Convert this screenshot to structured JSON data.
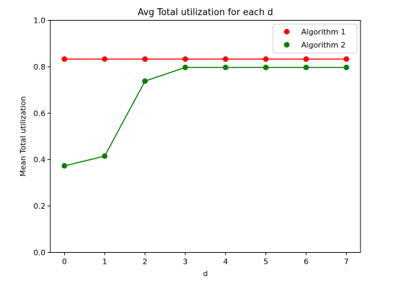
{
  "chart_data": {
    "type": "line",
    "title": "Avg Total utilization for each d",
    "xlabel": "d",
    "ylabel": "Mean Total utilization",
    "x": [
      0,
      1,
      2,
      3,
      4,
      5,
      6,
      7
    ],
    "xticks": [
      "0",
      "1",
      "2",
      "3",
      "4",
      "5",
      "6",
      "7"
    ],
    "yticks": [
      "0.0",
      "0.2",
      "0.4",
      "0.6",
      "0.8",
      "1.0"
    ],
    "ylim": [
      0.0,
      1.0
    ],
    "xlim": [
      -0.35,
      7.35
    ],
    "grid": false,
    "legend_position": "top-right",
    "series": [
      {
        "name": "Algorithm 1",
        "color": "#ff0000",
        "values": [
          0.833,
          0.833,
          0.833,
          0.833,
          0.833,
          0.833,
          0.833,
          0.833
        ]
      },
      {
        "name": "Algorithm 2",
        "color": "#008000",
        "values": [
          0.373,
          0.415,
          0.738,
          0.797,
          0.797,
          0.797,
          0.797,
          0.797
        ]
      }
    ]
  }
}
